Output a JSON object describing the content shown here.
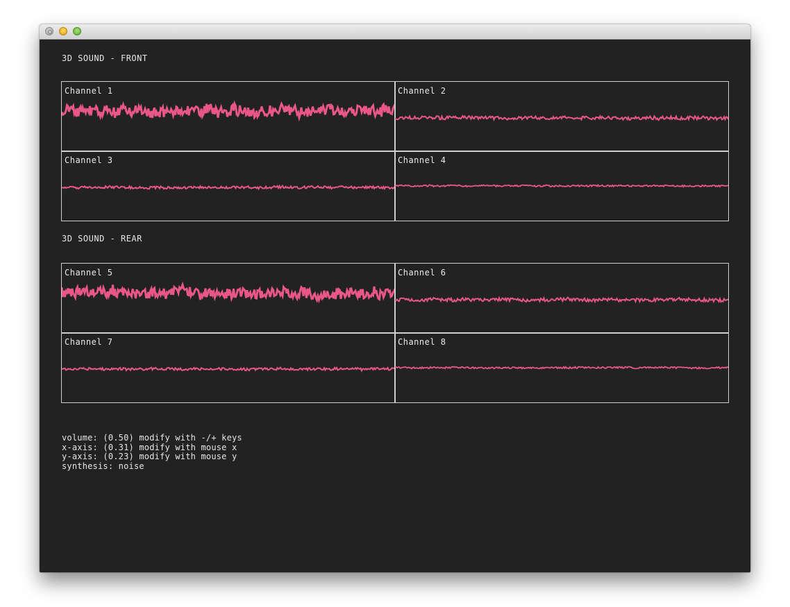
{
  "colors": {
    "background": "#222222",
    "waveform": "#e9578a",
    "border": "#cfcfcf",
    "text": "#e6e6e6"
  },
  "window": {
    "controls": [
      "close-button",
      "minimize-button",
      "maximize-button"
    ]
  },
  "front": {
    "title": "3D SOUND - FRONT",
    "channels": [
      {
        "label": "Channel 1",
        "level": 0.58,
        "amplitude": 0.08,
        "thickness": 3.0
      },
      {
        "label": "Channel 2",
        "level": 0.48,
        "amplitude": 0.025,
        "thickness": 2.0
      },
      {
        "label": "Channel 3",
        "level": 0.48,
        "amplitude": 0.018,
        "thickness": 2.0
      },
      {
        "label": "Channel 4",
        "level": 0.5,
        "amplitude": 0.012,
        "thickness": 1.8
      }
    ]
  },
  "rear": {
    "title": "3D SOUND - REAR",
    "channels": [
      {
        "label": "Channel 5",
        "level": 0.58,
        "amplitude": 0.08,
        "thickness": 3.0
      },
      {
        "label": "Channel 6",
        "level": 0.48,
        "amplitude": 0.025,
        "thickness": 2.0
      },
      {
        "label": "Channel 7",
        "level": 0.48,
        "amplitude": 0.018,
        "thickness": 2.0
      },
      {
        "label": "Channel 8",
        "level": 0.5,
        "amplitude": 0.012,
        "thickness": 1.8
      }
    ]
  },
  "status": {
    "volume": "volume: (0.50) modify with -/+ keys",
    "x_axis": "x-axis: (0.31) modify with mouse x",
    "y_axis": "y-axis: (0.23) modify with mouse y",
    "synthesis": "synthesis: noise"
  }
}
